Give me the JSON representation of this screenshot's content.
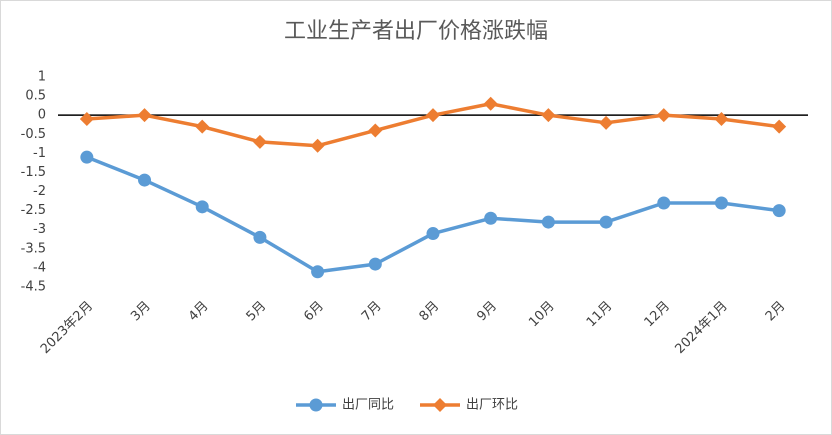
{
  "chart_data": {
    "type": "line",
    "title": "工业生产者出厂价格涨跌幅",
    "categories": [
      "2023年2月",
      "3月",
      "4月",
      "5月",
      "6月",
      "7月",
      "8月",
      "9月",
      "10月",
      "11月",
      "12月",
      "2024年1月",
      "2月"
    ],
    "series": [
      {
        "name": "出厂同比",
        "color": "#5b9bd5",
        "marker": "circle",
        "values": [
          -1.1,
          -1.7,
          -2.4,
          -3.2,
          -4.1,
          -3.9,
          -3.1,
          -2.7,
          -2.8,
          -2.8,
          -2.3,
          -2.3,
          -2.5
        ]
      },
      {
        "name": "出厂环比",
        "color": "#ed7d31",
        "marker": "diamond",
        "values": [
          -0.1,
          0,
          -0.3,
          -0.7,
          -0.8,
          -0.4,
          0,
          0.3,
          0,
          -0.2,
          0,
          -0.1,
          -0.3
        ]
      }
    ],
    "ylim": [
      -4.5,
      1
    ],
    "yticks": [
      1,
      0.5,
      0,
      -0.5,
      -1,
      -1.5,
      -2,
      -2.5,
      -3,
      -3.5,
      -4,
      -4.5
    ],
    "grid": false,
    "legend": "bottom"
  }
}
